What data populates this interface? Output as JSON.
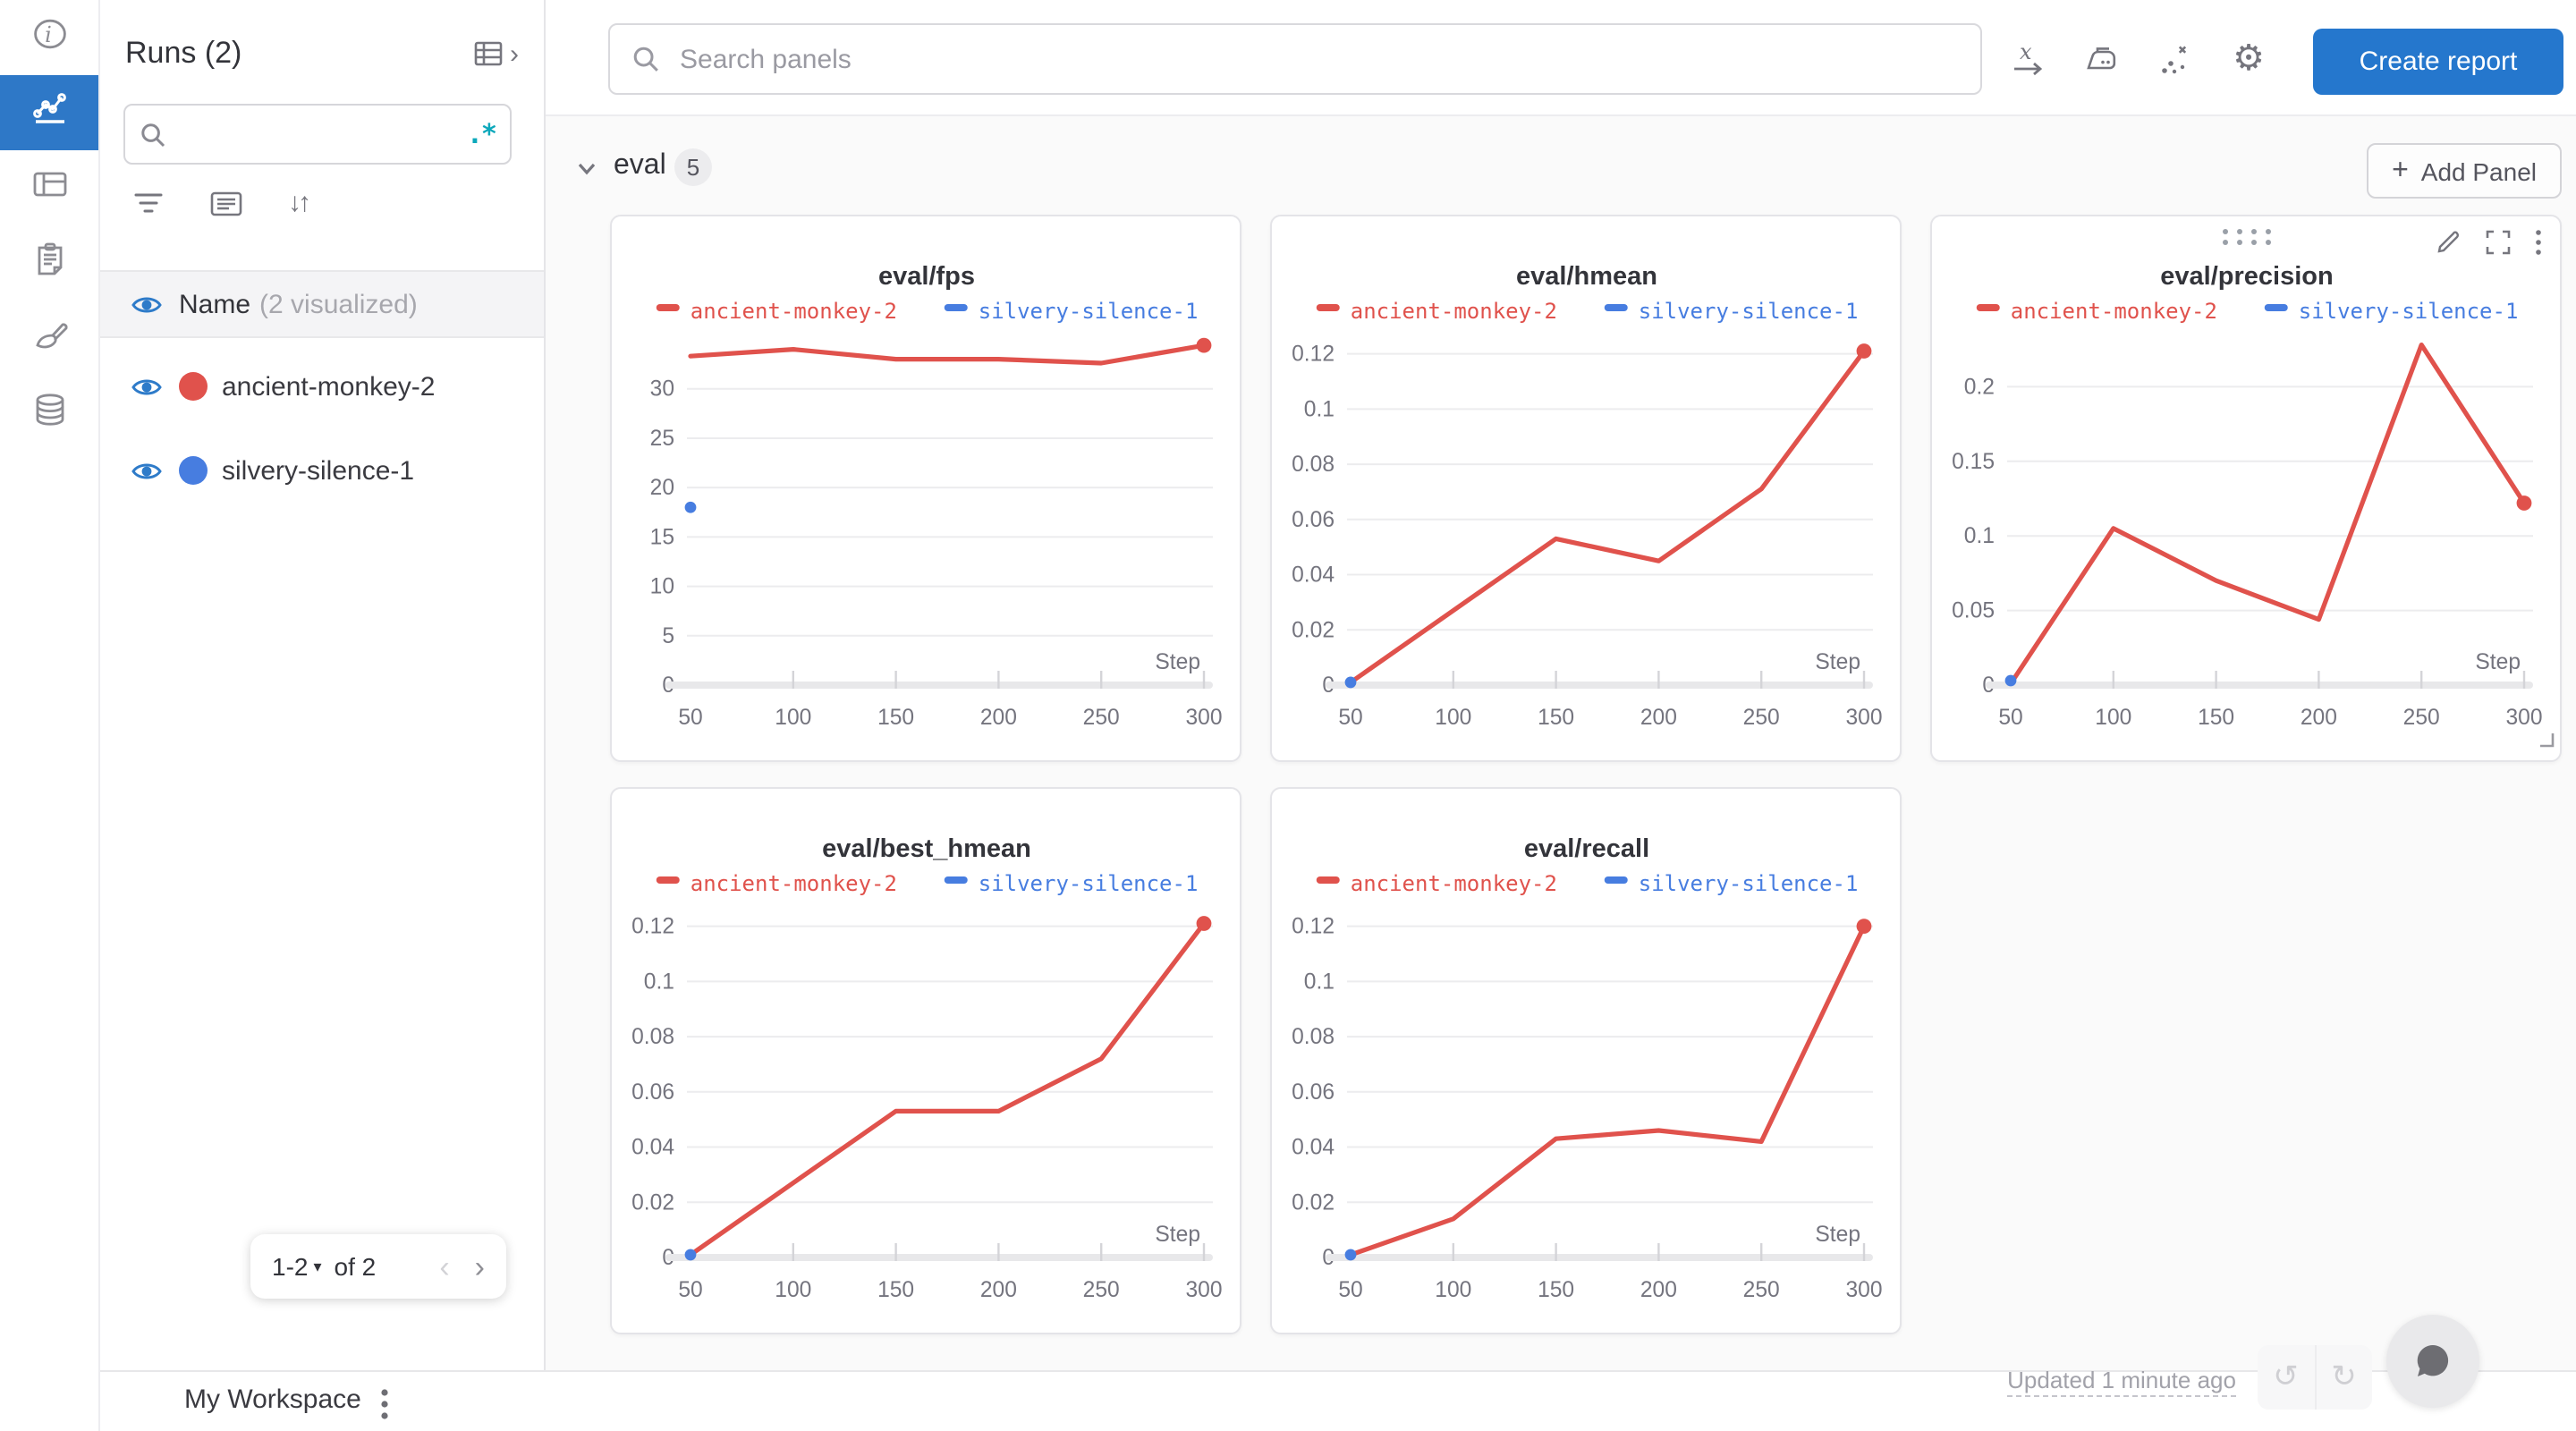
{
  "colors": {
    "accent_blue": "#2577cd",
    "nav_active_blue": "#2e78c7",
    "run_red": "#e0524c",
    "run_blue": "#477de0",
    "regex_teal": "#0ca8bb"
  },
  "sidebar": {
    "title": "Runs (2)",
    "search_value": "",
    "regex_icon": ".*",
    "runs_header": {
      "label": "Name",
      "sub": "(2 visualized)"
    },
    "runs": [
      {
        "name": "ancient-monkey-2",
        "color": "#e0524c"
      },
      {
        "name": "silvery-silence-1",
        "color": "#477de0"
      }
    ],
    "pagination": {
      "range": "1-2",
      "caret": "▾",
      "of_label": "of 2",
      "prev": "‹",
      "next": "›"
    },
    "collapse_chevron": "›"
  },
  "topbar": {
    "search_placeholder": "Search panels",
    "create_report_label": "Create report",
    "gear_glyph": "⚙"
  },
  "sidebar_tools": {
    "sort_glyph": "↓↑"
  },
  "section": {
    "name": "eval",
    "count": "5",
    "plus": "+",
    "add_panel_label": "Add Panel"
  },
  "footer": {
    "workspace_label": "My Workspace",
    "updated_label": "Updated 1 minute ago",
    "undo": "↺",
    "redo": "↻"
  },
  "chart_data": [
    {
      "type": "line",
      "title": "eval/fps",
      "xlabel": "Step",
      "x": [
        50,
        100,
        150,
        200,
        250,
        300
      ],
      "xtick_labels": [
        "50",
        "100",
        "150",
        "200",
        "250",
        "300"
      ],
      "ytick_vals": [
        0,
        5,
        10,
        15,
        20,
        25,
        30
      ],
      "ytick_labels": [
        "0",
        "5",
        "10",
        "15",
        "20",
        "25",
        "30"
      ],
      "ymax": 35.5,
      "series": [
        {
          "name": "ancient-monkey-2",
          "color": "#e0524c",
          "values": [
            33.3,
            34.0,
            33.0,
            33.0,
            32.6,
            34.4
          ],
          "end_dot": true
        },
        {
          "name": "silvery-silence-1",
          "color": "#477de0",
          "point": [
            50,
            18
          ]
        }
      ],
      "hover_controls": false
    },
    {
      "type": "line",
      "title": "eval/hmean",
      "xlabel": "Step",
      "x": [
        50,
        100,
        150,
        200,
        250,
        300
      ],
      "xtick_labels": [
        "50",
        "100",
        "150",
        "200",
        "250",
        "300"
      ],
      "ytick_vals": [
        0,
        0.02,
        0.04,
        0.06,
        0.08,
        0.1,
        0.12
      ],
      "ytick_labels": [
        "0",
        "0.02",
        "0.04",
        "0.06",
        "0.08",
        "0.1",
        "0.12"
      ],
      "ymax": 0.127,
      "series": [
        {
          "name": "ancient-monkey-2",
          "color": "#e0524c",
          "values": [
            0.001,
            0.027,
            0.053,
            0.045,
            0.071,
            0.121
          ],
          "end_dot": true
        },
        {
          "name": "silvery-silence-1",
          "color": "#477de0",
          "point": [
            50,
            0.001
          ]
        }
      ],
      "hover_controls": false
    },
    {
      "type": "line",
      "title": "eval/precision",
      "xlabel": "Step",
      "x": [
        50,
        100,
        150,
        200,
        250,
        300
      ],
      "xtick_labels": [
        "50",
        "100",
        "150",
        "200",
        "250",
        "300"
      ],
      "ytick_vals": [
        0,
        0.05,
        0.1,
        0.15,
        0.2
      ],
      "ytick_labels": [
        "0",
        "0.05",
        "0.1",
        "0.15",
        "0.2"
      ],
      "ymax": 0.235,
      "series": [
        {
          "name": "ancient-monkey-2",
          "color": "#e0524c",
          "values": [
            0.001,
            0.105,
            0.07,
            0.044,
            0.228,
            0.122
          ],
          "end_dot": true
        },
        {
          "name": "silvery-silence-1",
          "color": "#477de0",
          "point": [
            50,
            0.003
          ]
        }
      ],
      "hover_controls": true
    },
    {
      "type": "line",
      "title": "eval/best_hmean",
      "xlabel": "Step",
      "x": [
        50,
        100,
        150,
        200,
        250,
        300
      ],
      "xtick_labels": [
        "50",
        "100",
        "150",
        "200",
        "250",
        "300"
      ],
      "ytick_vals": [
        0,
        0.02,
        0.04,
        0.06,
        0.08,
        0.1,
        0.12
      ],
      "ytick_labels": [
        "0",
        "0.02",
        "0.04",
        "0.06",
        "0.08",
        "0.1",
        "0.12"
      ],
      "ymax": 0.127,
      "series": [
        {
          "name": "ancient-monkey-2",
          "color": "#e0524c",
          "values": [
            0.001,
            0.027,
            0.053,
            0.053,
            0.072,
            0.121
          ],
          "end_dot": true
        },
        {
          "name": "silvery-silence-1",
          "color": "#477de0",
          "point": [
            50,
            0.001
          ]
        }
      ],
      "hover_controls": false
    },
    {
      "type": "line",
      "title": "eval/recall",
      "xlabel": "Step",
      "x": [
        50,
        100,
        150,
        200,
        250,
        300
      ],
      "xtick_labels": [
        "50",
        "100",
        "150",
        "200",
        "250",
        "300"
      ],
      "ytick_vals": [
        0,
        0.02,
        0.04,
        0.06,
        0.08,
        0.1,
        0.12
      ],
      "ytick_labels": [
        "0",
        "0.02",
        "0.04",
        "0.06",
        "0.08",
        "0.1",
        "0.12"
      ],
      "ymax": 0.127,
      "series": [
        {
          "name": "ancient-monkey-2",
          "color": "#e0524c",
          "values": [
            0.001,
            0.014,
            0.043,
            0.046,
            0.042,
            0.12
          ],
          "end_dot": true
        },
        {
          "name": "silvery-silence-1",
          "color": "#477de0",
          "point": [
            50,
            0.001
          ]
        }
      ],
      "hover_controls": false
    }
  ]
}
